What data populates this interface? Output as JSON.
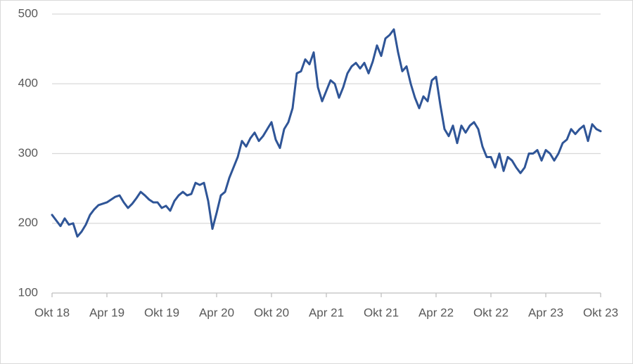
{
  "chart_data": {
    "type": "line",
    "categories": [
      "Okt 18",
      null,
      null,
      null,
      null,
      null,
      null,
      null,
      null,
      null,
      null,
      null,
      null,
      "Apr 19",
      null,
      null,
      null,
      null,
      null,
      null,
      null,
      null,
      null,
      null,
      null,
      null,
      "Okt 19",
      null,
      null,
      null,
      null,
      null,
      null,
      null,
      null,
      null,
      null,
      null,
      null,
      "Apr 20",
      null,
      null,
      null,
      null,
      null,
      null,
      null,
      null,
      null,
      null,
      null,
      null,
      "Okt 20",
      null,
      null,
      null,
      null,
      null,
      null,
      null,
      null,
      null,
      null,
      null,
      null,
      "Apr 21",
      null,
      null,
      null,
      null,
      null,
      null,
      null,
      null,
      null,
      null,
      null,
      null,
      "Okt 21",
      null,
      null,
      null,
      null,
      null,
      null,
      null,
      null,
      null,
      null,
      null,
      null,
      "Apr 22",
      null,
      null,
      null,
      null,
      null,
      null,
      null,
      null,
      null,
      null,
      null,
      null,
      "Okt 22",
      null,
      null,
      null,
      null,
      null,
      null,
      null,
      null,
      null,
      null,
      null,
      null,
      "Apr 23",
      null,
      null,
      null,
      null,
      null,
      null,
      null,
      null,
      null,
      null,
      null,
      null,
      "Okt 23"
    ],
    "values": [
      212,
      204,
      196,
      207,
      198,
      200,
      181,
      188,
      198,
      212,
      220,
      226,
      228,
      230,
      234,
      238,
      240,
      230,
      222,
      228,
      236,
      245,
      240,
      234,
      230,
      230,
      222,
      225,
      218,
      232,
      240,
      245,
      240,
      242,
      258,
      255,
      258,
      232,
      192,
      215,
      240,
      245,
      265,
      280,
      295,
      318,
      310,
      322,
      330,
      318,
      325,
      335,
      345,
      320,
      308,
      335,
      345,
      365,
      415,
      418,
      435,
      428,
      445,
      395,
      375,
      390,
      405,
      400,
      380,
      395,
      415,
      425,
      430,
      422,
      430,
      415,
      432,
      455,
      440,
      465,
      470,
      478,
      445,
      418,
      425,
      400,
      380,
      365,
      382,
      375,
      405,
      410,
      370,
      335,
      325,
      340,
      315,
      340,
      330,
      340,
      345,
      335,
      310,
      295,
      295,
      280,
      300,
      275,
      295,
      290,
      280,
      272,
      280,
      300,
      300,
      305,
      290,
      305,
      300,
      290,
      300,
      315,
      320,
      335,
      328,
      335,
      340,
      318,
      342,
      335,
      332
    ],
    "color": "#2f5597",
    "ylim": [
      100,
      500
    ],
    "yticks": [
      100,
      200,
      300,
      400,
      500
    ],
    "grid": true
  }
}
